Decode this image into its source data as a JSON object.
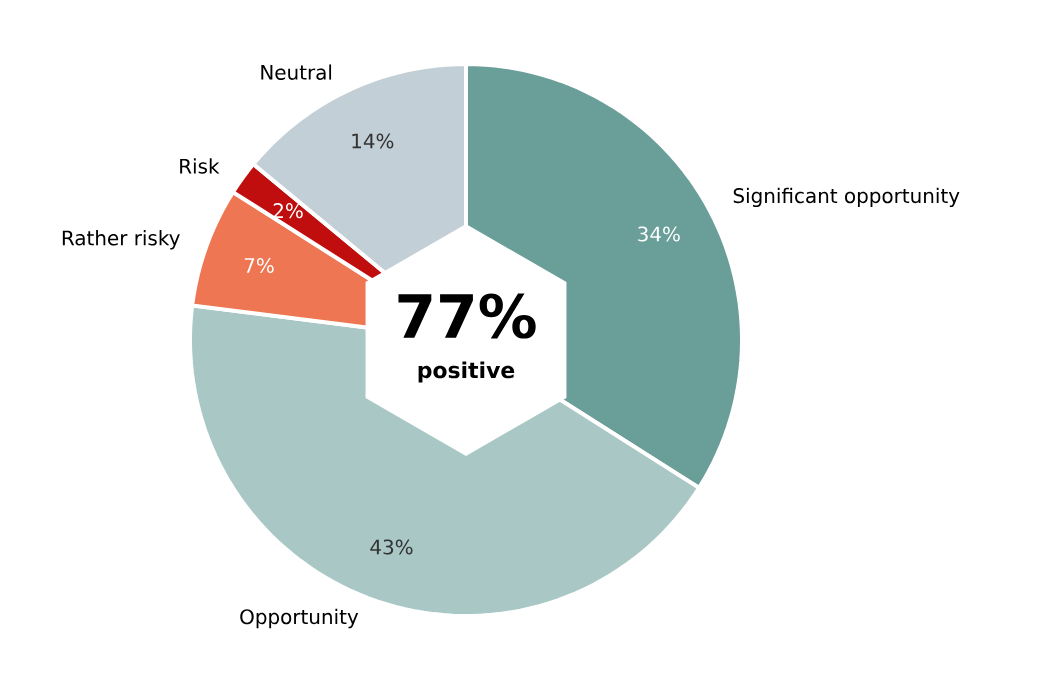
{
  "chart_data": {
    "type": "pie",
    "categories": [
      "Significant opportunity",
      "Opportunity",
      "Rather risky",
      "Risk",
      "Neutral"
    ],
    "values": [
      34,
      43,
      7,
      2,
      14
    ],
    "value_labels": [
      "34%",
      "43%",
      "7%",
      "2%",
      "14%"
    ],
    "colors": [
      "#6a9e98",
      "#a9c7c5",
      "#ee7652",
      "#c00d0d",
      "#c3cfd6"
    ],
    "annotations": [
      "77%",
      "positive"
    ]
  }
}
